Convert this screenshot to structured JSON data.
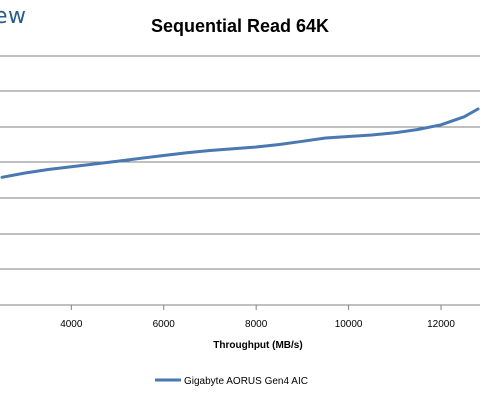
{
  "brand": {
    "text": "ew"
  },
  "chart_data": {
    "type": "line",
    "title": "Sequential Read 64K",
    "xlabel": "Throughput (MB/s)",
    "ylabel": "",
    "x_ticks": [
      4000,
      6000,
      8000,
      10000,
      12000
    ],
    "xlim": [
      2500,
      12800
    ],
    "grid": true,
    "legend": "bottom",
    "series": [
      {
        "name": "Gigabyte AORUS Gen4 AIC",
        "color": "#4a78b0",
        "y_fraction_min": 0,
        "y_fraction_max": 1,
        "points": [
          [
            2500,
            0.511
          ],
          [
            3000,
            0.528
          ],
          [
            3500,
            0.542
          ],
          [
            4000,
            0.553
          ],
          [
            4500,
            0.564
          ],
          [
            5000,
            0.575
          ],
          [
            5500,
            0.587
          ],
          [
            6000,
            0.598
          ],
          [
            6500,
            0.609
          ],
          [
            7000,
            0.618
          ],
          [
            7500,
            0.625
          ],
          [
            8000,
            0.632
          ],
          [
            8500,
            0.642
          ],
          [
            9000,
            0.655
          ],
          [
            9500,
            0.668
          ],
          [
            10000,
            0.674
          ],
          [
            10500,
            0.68
          ],
          [
            11000,
            0.689
          ],
          [
            11500,
            0.702
          ],
          [
            12000,
            0.721
          ],
          [
            12500,
            0.753
          ],
          [
            12800,
            0.784
          ]
        ]
      }
    ]
  }
}
